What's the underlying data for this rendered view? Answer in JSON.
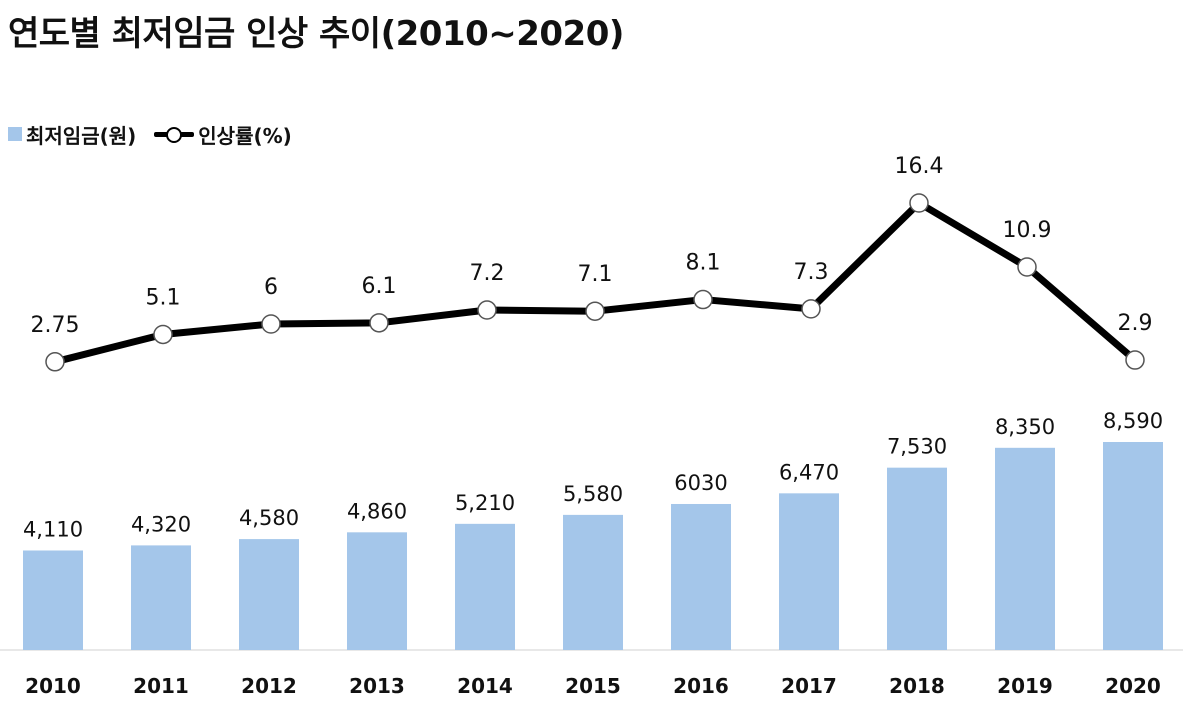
{
  "title": "연도별 최저임금 인상 추이(2010~2020)",
  "legend": {
    "bar_label": "최저임금(원)",
    "line_label": "인상률(%)"
  },
  "colors": {
    "bar": "#a4c6ea",
    "line": "#000000",
    "marker_fill": "#ffffff",
    "axis": "#d0d0d0"
  },
  "chart_data": {
    "type": "bar",
    "title": "연도별 최저임금 인상 추이(2010~2020)",
    "categories": [
      "2010",
      "2011",
      "2012",
      "2013",
      "2014",
      "2015",
      "2016",
      "2017",
      "2018",
      "2019",
      "2020"
    ],
    "series": [
      {
        "name": "최저임금(원)",
        "type": "bar",
        "values": [
          4110,
          4320,
          4580,
          4860,
          5210,
          5580,
          6030,
          6470,
          7530,
          8350,
          8590
        ],
        "labels": [
          "4,110",
          "4,320",
          "4,580",
          "4,860",
          "5,210",
          "5,580",
          "6030",
          "6,470",
          "7,530",
          "8,350",
          "8,590"
        ]
      },
      {
        "name": "인상률(%)",
        "type": "line",
        "values": [
          2.75,
          5.1,
          6,
          6.1,
          7.2,
          7.1,
          8.1,
          7.3,
          16.4,
          10.9,
          2.9
        ],
        "labels": [
          "2.75",
          "5.1",
          "6",
          "6.1",
          "7.2",
          "7.1",
          "8.1",
          "7.3",
          "16.4",
          "10.9",
          "2.9"
        ]
      }
    ],
    "xlabel": "",
    "ylabel": "",
    "ylim_bar": [
      0,
      8590
    ],
    "ylim_line": [
      2.75,
      16.4
    ],
    "grid": false,
    "legend_position": "top-left"
  }
}
